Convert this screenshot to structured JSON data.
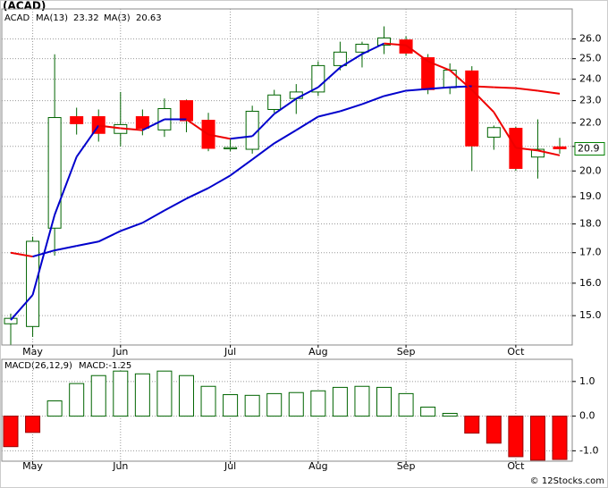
{
  "chart_data": [
    {
      "type": "candlestick",
      "title": "(ACAD)",
      "name": "ACAD",
      "name_color": "#008000",
      "categories": [
        null,
        "May",
        null,
        null,
        null,
        "Jun",
        null,
        null,
        null,
        null,
        "Jul",
        null,
        null,
        null,
        "Aug",
        null,
        null,
        null,
        "Sep",
        null,
        null,
        null,
        null,
        "Oct",
        null,
        null
      ],
      "open": [
        14.76,
        14.68,
        17.85,
        22.28,
        22.28,
        21.55,
        22.28,
        21.7,
        23.0,
        22.12,
        20.9,
        20.88,
        22.6,
        23.1,
        23.4,
        24.66,
        25.33,
        25.68,
        25.95,
        25.05,
        23.6,
        24.4,
        21.39,
        21.77,
        20.56,
        20.98
      ],
      "high": [
        15.06,
        17.55,
        25.22,
        22.68,
        22.6,
        23.4,
        22.6,
        23.1,
        23.05,
        22.45,
        21.3,
        22.77,
        23.5,
        23.77,
        24.87,
        25.86,
        25.86,
        26.66,
        26.14,
        25.23,
        24.77,
        24.63,
        21.89,
        21.85,
        22.16,
        21.36
      ],
      "low": [
        14.16,
        14.38,
        16.9,
        21.5,
        21.2,
        21.0,
        21.47,
        21.4,
        21.6,
        20.8,
        20.8,
        20.7,
        22.45,
        22.4,
        23.21,
        24.43,
        24.57,
        25.23,
        25.14,
        23.3,
        23.3,
        20.0,
        20.86,
        20.0,
        19.7,
        20.7
      ],
      "close": [
        14.92,
        17.39,
        22.24,
        21.97,
        21.55,
        21.93,
        21.77,
        22.64,
        22.1,
        20.92,
        20.95,
        22.52,
        23.26,
        23.4,
        24.66,
        25.33,
        25.73,
        26.05,
        25.28,
        23.51,
        24.44,
        21.02,
        21.8,
        20.1,
        20.88,
        20.9
      ],
      "up_color": "#ffffff",
      "down_color": "#ff0000",
      "candle_edge": "#006400",
      "series": [
        {
          "name": "MA(13)",
          "values": [
            17.0,
            16.87,
            17.08,
            17.23,
            17.38,
            17.75,
            18.04,
            18.49,
            18.93,
            19.33,
            19.82,
            20.46,
            21.13,
            21.69,
            22.28,
            22.52,
            22.84,
            23.21,
            23.46,
            23.54,
            23.62,
            23.67,
            23.62,
            23.58,
            23.46,
            23.32
          ]
        },
        {
          "name": "MA(3)",
          "values": [
            14.87,
            15.63,
            18.33,
            20.57,
            21.89,
            21.77,
            21.69,
            22.16,
            22.16,
            21.5,
            21.32,
            21.43,
            22.4,
            23.09,
            23.62,
            24.57,
            25.23,
            25.77,
            25.68,
            24.87,
            24.43,
            23.5,
            22.48,
            20.94,
            20.83,
            20.63
          ]
        }
      ],
      "rising_color": "#0000cc",
      "falling_color": "#ee0000",
      "legend_color": "#0000cc",
      "log_scale": true,
      "grid": true,
      "ylim": [
        14.15,
        27.6
      ],
      "yticks": [
        {
          "value": 15,
          "label": "15.0"
        },
        {
          "value": 16,
          "label": "16.0"
        },
        {
          "value": 17,
          "label": "17.0"
        },
        {
          "value": 18,
          "label": "18.0"
        },
        {
          "value": 19,
          "label": "19.0"
        },
        {
          "value": 20,
          "label": "20.0"
        },
        {
          "value": 21,
          "label": "21.0"
        },
        {
          "value": 22,
          "label": "22.0"
        },
        {
          "value": 23,
          "label": "23.0"
        },
        {
          "value": 24,
          "label": "24.0"
        },
        {
          "value": 25,
          "label": "25.0"
        },
        {
          "value": 26,
          "label": "26.0"
        }
      ],
      "last_price": 20.9
    },
    {
      "type": "bar",
      "title": "MACD(26,12,9)",
      "last_label": "MACD:-1.25",
      "categories": [
        null,
        "May",
        null,
        null,
        null,
        "Jun",
        null,
        null,
        null,
        null,
        "Jul",
        null,
        null,
        null,
        "Aug",
        null,
        null,
        null,
        "Sep",
        null,
        null,
        null,
        null,
        "Oct",
        null,
        null
      ],
      "values": [
        -0.88,
        -0.47,
        0.44,
        0.94,
        1.17,
        1.3,
        1.22,
        1.3,
        1.17,
        0.86,
        0.62,
        0.6,
        0.65,
        0.68,
        0.73,
        0.83,
        0.86,
        0.83,
        0.65,
        0.26,
        0.08,
        -0.49,
        -0.78,
        -1.17,
        -1.27,
        -1.25
      ],
      "pos_color": "#ffffff",
      "neg_color": "#ff0000",
      "edge_color": "#006400",
      "ylim": [
        -1.3,
        1.64
      ],
      "grid": true,
      "yticks": [
        {
          "value": -1,
          "label": "-1.0"
        },
        {
          "value": 0,
          "label": "0.0"
        },
        {
          "value": 1,
          "label": "1.0"
        }
      ],
      "source": "© 12Stocks.com"
    }
  ]
}
